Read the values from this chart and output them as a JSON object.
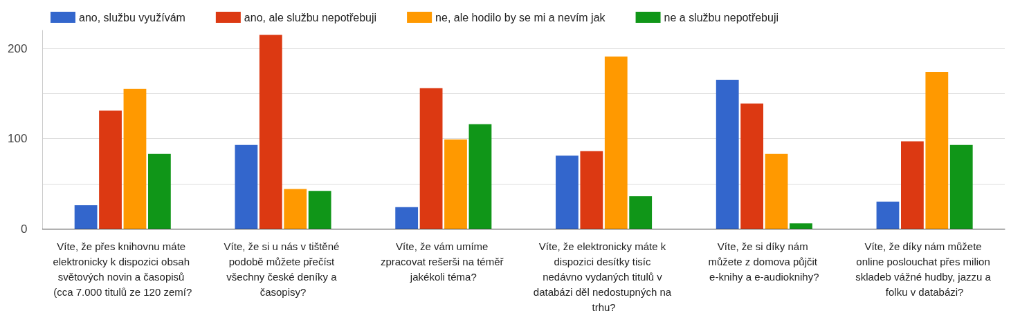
{
  "chart_data": {
    "type": "bar",
    "categories": [
      "Víte, že přes knihovnu máte elektronicky k dispozici obsah světových novin a časopisů (cca 7.000 titulů ze 120 zemí?",
      "Víte, že si u nás v tištěné podobě můžete přečíst všechny české deníky a časopisy?",
      "Víte, že vám umíme zpracovat rešerši na téměř jakékoli téma?",
      "Víte, že elektronicky máte k dispozici desítky tisíc nedávno vydaných titulů v databázi děl nedostupných na trhu?",
      "Víte, že si díky nám můžete z domova půjčit e-knihy a e-audioknihy?",
      "Víte, že díky nám můžete online poslouchat přes milion skladeb vážné hudby, jazzu a folku v databázi?"
    ],
    "series": [
      {
        "name": "ano, službu využívám",
        "color": "#3366cc",
        "values": [
          26,
          93,
          24,
          81,
          165,
          30
        ]
      },
      {
        "name": "ano, ale službu nepotřebuji",
        "color": "#dc3912",
        "values": [
          131,
          215,
          156,
          86,
          139,
          97
        ]
      },
      {
        "name": "ne, ale hodilo by se mi a nevím jak",
        "color": "#ff9900",
        "values": [
          155,
          44,
          99,
          191,
          83,
          174
        ]
      },
      {
        "name": "ne a službu nepotřebuji",
        "color": "#109618",
        "values": [
          83,
          42,
          116,
          36,
          6,
          93
        ]
      }
    ],
    "ylim": [
      0,
      220
    ],
    "yticks": [
      0,
      {
        "value": 50,
        "label": null
      },
      100,
      {
        "value": 150,
        "label": null
      },
      200
    ],
    "grid": true,
    "legend": "top left"
  }
}
